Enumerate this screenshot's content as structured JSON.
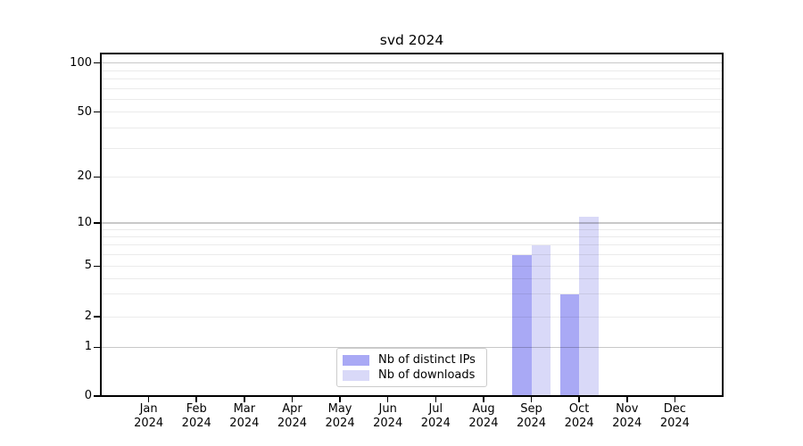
{
  "figure_title": "svd 2024",
  "chart_data": {
    "type": "bar",
    "title": "svd 2024",
    "x_tick_labels": [
      {
        "month": "Jan",
        "year": "2024"
      },
      {
        "month": "Feb",
        "year": "2024"
      },
      {
        "month": "Mar",
        "year": "2024"
      },
      {
        "month": "Apr",
        "year": "2024"
      },
      {
        "month": "May",
        "year": "2024"
      },
      {
        "month": "Jun",
        "year": "2024"
      },
      {
        "month": "Jul",
        "year": "2024"
      },
      {
        "month": "Aug",
        "year": "2024"
      },
      {
        "month": "Sep",
        "year": "2024"
      },
      {
        "month": "Oct",
        "year": "2024"
      },
      {
        "month": "Nov",
        "year": "2024"
      },
      {
        "month": "Dec",
        "year": "2024"
      }
    ],
    "series": [
      {
        "name": "Nb of distinct IPs",
        "color": "#a9a9f5",
        "values": [
          0,
          0,
          0,
          0,
          0,
          0,
          0,
          0,
          6,
          3,
          0,
          0
        ]
      },
      {
        "name": "Nb of downloads",
        "color": "#d9d9f8",
        "values": [
          0,
          0,
          0,
          0,
          0,
          0,
          0,
          0,
          7,
          11,
          0,
          0
        ]
      }
    ],
    "y_tick_labels": [
      "0",
      "1",
      "2",
      "5",
      "10",
      "20",
      "50",
      "100"
    ],
    "y_major_gridline_values": [
      1,
      10,
      100
    ],
    "y_scale": "log-like",
    "ylim": [
      0,
      115
    ],
    "xlabel": "",
    "ylabel": "",
    "grid": true,
    "legend": {
      "position": "bottom-center",
      "entries": [
        "Nb of distinct IPs",
        "Nb of downloads"
      ]
    }
  }
}
